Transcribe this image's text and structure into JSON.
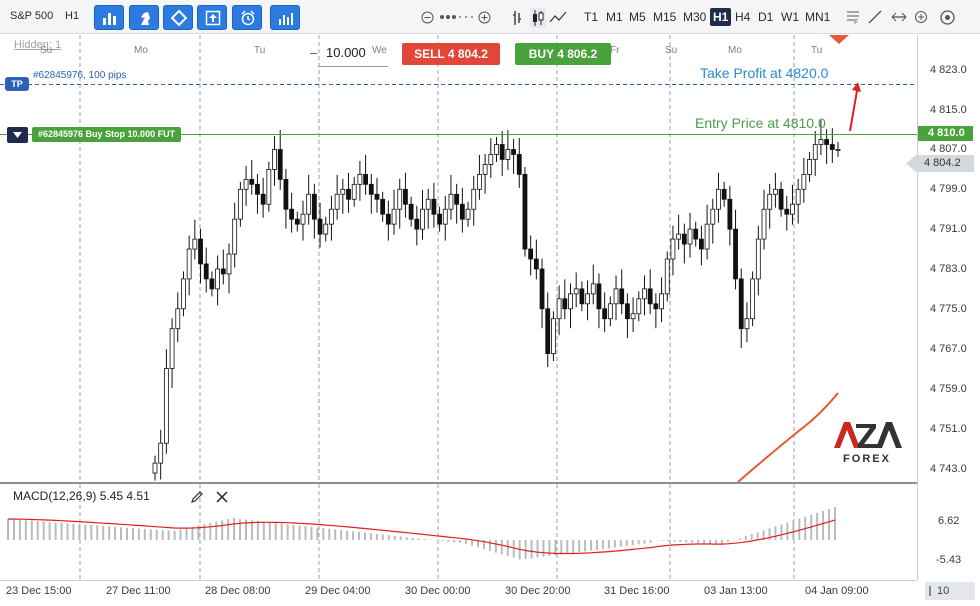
{
  "toolbar": {
    "symbol": "S&P 500",
    "timeframe": "H1",
    "timeframes": [
      "T1",
      "M1",
      "M5",
      "M15",
      "M30",
      "H1",
      "H4",
      "D1",
      "W1",
      "MN1"
    ],
    "active_timeframe": "H1"
  },
  "chart": {
    "hidden_label": "Hidden: 1",
    "day_labels": [
      "Su",
      "Mo",
      "Tu",
      "We",
      "Fr",
      "Su",
      "Mo",
      "Tu"
    ],
    "lot": {
      "minus": "–",
      "value": "10.000"
    },
    "sell_label": "SELL 4 804.2",
    "buy_label": "BUY 4 806.2",
    "tp_tag": "TP",
    "tp_text": "#62845976, 100 pips",
    "order_tag": "#62845976 Buy Stop 10.000 FUT",
    "tp_annotation": "Take Profit at 4820.0",
    "entry_annotation": "Entry Price at 4810.0",
    "entry_price_tag": "4 810.0",
    "last_price_tag": "4 804.2",
    "price_labels": [
      "4 823.0",
      "4 815.0",
      "4 807.0",
      "4 799.0",
      "4 791.0",
      "4 783.0",
      "4 775.0",
      "4 767.0",
      "4 759.0",
      "4 751.0",
      "4 743.0"
    ]
  },
  "macd": {
    "label": "MACD(12,26,9) 5.45 4.51",
    "axis_top": "6.62",
    "axis_bottom": "-5.43"
  },
  "time_axis": [
    "23 Dec 15:00",
    "27 Dec 11:00",
    "28 Dec 08:00",
    "29 Dec 04:00",
    "30 Dec 00:00",
    "30 Dec 20:00",
    "31 Dec 16:00",
    "03 Jan 13:00",
    "04 Jan 09:00"
  ],
  "zoom": "10",
  "logo": {
    "main": "AZA",
    "sub": "FOREX"
  },
  "colors": {
    "sell": "#e24638",
    "buy": "#4aa23c",
    "tp_line": "#2b61b8",
    "entry_line": "#4aa23c",
    "signal": "#e02020",
    "accent": "#2b7be0"
  },
  "chart_data": {
    "type": "candlestick",
    "ylim": [
      4737,
      4827
    ],
    "entry_price": 4810.0,
    "take_profit": 4820.0,
    "last_price": 4804.2,
    "closes": [
      4741,
      4745,
      4760,
      4768,
      4772,
      4778,
      4784,
      4786,
      4781,
      4778,
      4776,
      4780,
      4779,
      4783,
      4790,
      4796,
      4798,
      4797,
      4795,
      4793,
      4800,
      4804,
      4798,
      4792,
      4790,
      4789,
      4791,
      4795,
      4790,
      4787,
      4789,
      4792,
      4795,
      4796,
      4794,
      4797,
      4799,
      4797,
      4795,
      4794,
      4791,
      4789,
      4792,
      4796,
      4793,
      4790,
      4788,
      4792,
      4794,
      4791,
      4789,
      4792,
      4795,
      4793,
      4790,
      4792,
      4796,
      4799,
      4801,
      4803,
      4805,
      4802,
      4804,
      4803,
      4799,
      4784,
      4782,
      4780,
      4772,
      4763,
      4770,
      4774,
      4772,
      4775,
      4776,
      4773,
      4775,
      4777,
      4772,
      4770,
      4773,
      4776,
      4773,
      4770,
      4771,
      4774,
      4776,
      4773,
      4772,
      4775,
      4782,
      4786,
      4787,
      4785,
      4788,
      4786,
      4784,
      4789,
      4792,
      4796,
      4794,
      4788,
      4778,
      4768,
      4770,
      4778,
      4786,
      4792,
      4795,
      4796,
      4792,
      4791,
      4793,
      4796,
      4799,
      4802,
      4805,
      4806,
      4805,
      4804,
      4804
    ]
  }
}
